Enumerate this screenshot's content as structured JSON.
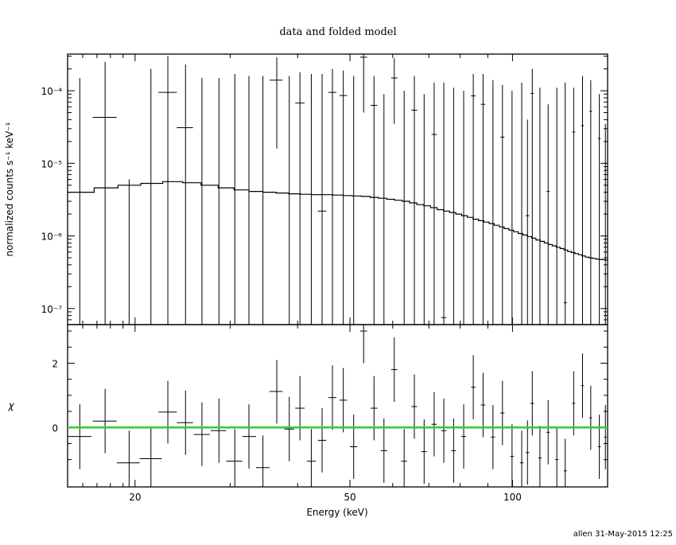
{
  "chart_data": {
    "type": "scatter",
    "title": "data and folded model",
    "xlabel": "Energy (keV)",
    "x_scale": "log",
    "xlim": [
      15,
      150
    ],
    "x_ticks": [
      20,
      50,
      100
    ],
    "footer": "allen 31-May-2015 12:25",
    "top_panel": {
      "ylabel": "normalized counts s⁻¹ keV⁻¹",
      "y_scale": "log",
      "ylim": [
        6e-08,
        0.00032
      ],
      "y_ticks": [
        {
          "value": 1e-07,
          "label": "10⁻⁷"
        },
        {
          "value": 1e-06,
          "label": "10⁻⁶"
        },
        {
          "value": 1e-05,
          "label": "10⁻⁵"
        },
        {
          "value": 0.0001,
          "label": "10⁻⁴"
        }
      ],
      "data": [
        {
          "x": 15.8,
          "xlo": 15.0,
          "xhi": 16.6,
          "y": 6e-08,
          "ylo": 6e-08,
          "yhi": 0.00015
        },
        {
          "x": 17.6,
          "xlo": 16.7,
          "xhi": 18.5,
          "y": 4.3e-05,
          "ylo": 6e-08,
          "yhi": 0.00025
        },
        {
          "x": 19.5,
          "xlo": 18.5,
          "xhi": 20.4,
          "y": 6e-08,
          "ylo": 6e-08,
          "yhi": 6e-06
        },
        {
          "x": 21.4,
          "xlo": 20.4,
          "xhi": 22.4,
          "y": 6e-08,
          "ylo": 6e-08,
          "yhi": 0.0002
        },
        {
          "x": 23.0,
          "xlo": 22.1,
          "xhi": 23.9,
          "y": 9.5e-05,
          "ylo": 6e-08,
          "yhi": 0.0003
        },
        {
          "x": 24.8,
          "xlo": 23.9,
          "xhi": 25.6,
          "y": 3.1e-05,
          "ylo": 6e-08,
          "yhi": 0.00023
        },
        {
          "x": 26.6,
          "xlo": 25.7,
          "xhi": 27.5,
          "y": 6e-08,
          "ylo": 6e-08,
          "yhi": 0.00015
        },
        {
          "x": 28.6,
          "xlo": 27.6,
          "xhi": 29.5,
          "y": 6e-08,
          "ylo": 6e-08,
          "yhi": 0.00015
        },
        {
          "x": 30.6,
          "xlo": 29.5,
          "xhi": 31.6,
          "y": 6e-08,
          "ylo": 6e-08,
          "yhi": 0.00017
        },
        {
          "x": 32.5,
          "xlo": 31.6,
          "xhi": 33.5,
          "y": 6e-08,
          "ylo": 6e-08,
          "yhi": 0.00016
        },
        {
          "x": 34.5,
          "xlo": 33.5,
          "xhi": 35.5,
          "y": 6e-08,
          "ylo": 6e-08,
          "yhi": 0.00016
        },
        {
          "x": 36.6,
          "xlo": 35.5,
          "xhi": 37.5,
          "y": 0.00014,
          "ylo": 1.6e-05,
          "yhi": 0.00029
        },
        {
          "x": 38.6,
          "xlo": 37.8,
          "xhi": 39.4,
          "y": 6e-08,
          "ylo": 6e-08,
          "yhi": 0.00016
        },
        {
          "x": 40.4,
          "xlo": 39.6,
          "xhi": 41.2,
          "y": 6.8e-05,
          "ylo": 6e-08,
          "yhi": 0.00018
        },
        {
          "x": 42.4,
          "xlo": 41.6,
          "xhi": 43.2,
          "y": 6e-08,
          "ylo": 6e-08,
          "yhi": 0.00017
        },
        {
          "x": 44.4,
          "xlo": 43.6,
          "xhi": 45.2,
          "y": 2.2e-06,
          "ylo": 6e-08,
          "yhi": 0.00017
        },
        {
          "x": 46.4,
          "xlo": 45.6,
          "xhi": 47.2,
          "y": 9.5e-05,
          "ylo": 6e-08,
          "yhi": 0.0002
        },
        {
          "x": 48.6,
          "xlo": 47.8,
          "xhi": 49.4,
          "y": 8.6e-05,
          "ylo": 6e-08,
          "yhi": 0.00019
        },
        {
          "x": 50.8,
          "xlo": 50.0,
          "xhi": 51.6,
          "y": 6e-08,
          "ylo": 6e-08,
          "yhi": 0.00016
        },
        {
          "x": 53.0,
          "xlo": 52.2,
          "xhi": 53.8,
          "y": 0.00029,
          "ylo": 5e-05,
          "yhi": 0.00032
        },
        {
          "x": 55.4,
          "xlo": 54.6,
          "xhi": 56.2,
          "y": 6.3e-05,
          "ylo": 6e-08,
          "yhi": 0.00016
        },
        {
          "x": 57.8,
          "xlo": 57.0,
          "xhi": 58.6,
          "y": 6e-08,
          "ylo": 6e-08,
          "yhi": 9e-05
        },
        {
          "x": 60.4,
          "xlo": 59.6,
          "xhi": 61.2,
          "y": 0.00015,
          "ylo": 3.5e-05,
          "yhi": 0.00028
        },
        {
          "x": 63.0,
          "xlo": 62.2,
          "xhi": 63.8,
          "y": 6e-08,
          "ylo": 6e-08,
          "yhi": 0.0001
        },
        {
          "x": 65.8,
          "xlo": 65.0,
          "xhi": 66.6,
          "y": 5.4e-05,
          "ylo": 6e-08,
          "yhi": 0.00016
        },
        {
          "x": 68.6,
          "xlo": 67.8,
          "xhi": 69.4,
          "y": 6e-08,
          "ylo": 6e-08,
          "yhi": 9e-05
        },
        {
          "x": 71.6,
          "xlo": 70.8,
          "xhi": 72.4,
          "y": 2.5e-05,
          "ylo": 6e-08,
          "yhi": 0.00013
        },
        {
          "x": 74.6,
          "xlo": 73.8,
          "xhi": 75.4,
          "y": 7.5e-08,
          "ylo": 6e-08,
          "yhi": 0.00013
        },
        {
          "x": 77.8,
          "xlo": 77.0,
          "xhi": 78.6,
          "y": 6e-08,
          "ylo": 6e-08,
          "yhi": 0.00011
        },
        {
          "x": 81.2,
          "xlo": 80.4,
          "xhi": 82.0,
          "y": 6e-08,
          "ylo": 6e-08,
          "yhi": 0.0001
        },
        {
          "x": 84.6,
          "xlo": 83.8,
          "xhi": 85.4,
          "y": 8.5e-05,
          "ylo": 6e-08,
          "yhi": 0.00017
        },
        {
          "x": 88.2,
          "xlo": 87.4,
          "xhi": 89.0,
          "y": 6.5e-05,
          "ylo": 6e-08,
          "yhi": 0.00017
        },
        {
          "x": 92.0,
          "xlo": 91.2,
          "xhi": 92.8,
          "y": 6e-08,
          "ylo": 6e-08,
          "yhi": 0.00014
        },
        {
          "x": 95.8,
          "xlo": 95.0,
          "xhi": 96.6,
          "y": 2.3e-05,
          "ylo": 6e-08,
          "yhi": 0.00012
        },
        {
          "x": 99.8,
          "xlo": 99.0,
          "xhi": 100.6,
          "y": 6e-08,
          "ylo": 6e-08,
          "yhi": 0.0001
        },
        {
          "x": 104.0,
          "xlo": 103.2,
          "xhi": 104.8,
          "y": 6e-08,
          "ylo": 6e-08,
          "yhi": 0.00013
        },
        {
          "x": 106.6,
          "xlo": 105.8,
          "xhi": 107.4,
          "y": 1.9e-06,
          "ylo": 6e-08,
          "yhi": 4e-05
        },
        {
          "x": 108.8,
          "xlo": 108.0,
          "xhi": 109.6,
          "y": 9.2e-05,
          "ylo": 6e-08,
          "yhi": 0.0002
        },
        {
          "x": 112.4,
          "xlo": 111.6,
          "xhi": 113.2,
          "y": 6e-08,
          "ylo": 6e-08,
          "yhi": 0.00011
        },
        {
          "x": 116.4,
          "xlo": 115.6,
          "xhi": 117.2,
          "y": 4.1e-06,
          "ylo": 6e-08,
          "yhi": 6.5e-05
        },
        {
          "x": 120.8,
          "xlo": 120.0,
          "xhi": 121.6,
          "y": 6e-08,
          "ylo": 6e-08,
          "yhi": 0.00011
        },
        {
          "x": 125.2,
          "xlo": 124.4,
          "xhi": 126.0,
          "y": 1.2e-07,
          "ylo": 6e-08,
          "yhi": 0.00013
        },
        {
          "x": 129.8,
          "xlo": 129.0,
          "xhi": 130.6,
          "y": 2.7e-05,
          "ylo": 6e-08,
          "yhi": 0.00011
        },
        {
          "x": 134.8,
          "xlo": 134.0,
          "xhi": 135.6,
          "y": 3.3e-05,
          "ylo": 6e-08,
          "yhi": 0.00016
        },
        {
          "x": 139.6,
          "xlo": 138.8,
          "xhi": 140.4,
          "y": 5.2e-05,
          "ylo": 6e-08,
          "yhi": 0.00014
        },
        {
          "x": 144.8,
          "xlo": 144.0,
          "xhi": 145.6,
          "y": 2.2e-05,
          "ylo": 6e-08,
          "yhi": 9e-05
        },
        {
          "x": 148.6,
          "xlo": 147.8,
          "xhi": 149.4,
          "y": 1e-05,
          "ylo": 6e-08,
          "yhi": 3.5e-05
        }
      ],
      "model": {
        "edges": [
          15,
          16.8,
          18.6,
          20.5,
          22.5,
          24.5,
          26.5,
          28.5,
          30.5,
          32.5,
          34.5,
          36.5,
          38.5,
          40.5,
          42.5,
          44.5,
          46.5,
          48.5,
          50.5,
          52.5,
          54.5,
          56.5,
          58.5,
          60.5,
          62.5,
          64.5,
          66.5,
          68.5,
          70.5,
          72.5,
          74.5,
          76.5,
          78.5,
          80.5,
          82.5,
          84.5,
          86.5,
          88.5,
          90.5,
          92.5,
          94.5,
          96.5,
          98.5,
          100.5,
          102.5,
          104.5,
          106.5,
          108.5,
          110.5,
          112.5,
          114.5,
          116.5,
          118.5,
          120.5,
          122.5,
          124.5,
          126.5,
          128.5,
          130.5,
          132.5,
          134.5,
          136.5,
          138.5,
          140.5,
          142.5,
          144.5,
          146.5,
          148.5,
          150
        ],
        "values": [
          4e-06,
          4.6e-06,
          5e-06,
          5.3e-06,
          5.6e-06,
          5.4e-06,
          5e-06,
          4.6e-06,
          4.3e-06,
          4.1e-06,
          4e-06,
          3.9e-06,
          3.8e-06,
          3.75e-06,
          3.7e-06,
          3.7e-06,
          3.65e-06,
          3.6e-06,
          3.55e-06,
          3.5e-06,
          3.4e-06,
          3.3e-06,
          3.2e-06,
          3.1e-06,
          3e-06,
          2.85e-06,
          2.7e-06,
          2.6e-06,
          2.45e-06,
          2.3e-06,
          2.2e-06,
          2.1e-06,
          2e-06,
          1.9e-06,
          1.8e-06,
          1.7e-06,
          1.62e-06,
          1.55e-06,
          1.48e-06,
          1.4e-06,
          1.33e-06,
          1.26e-06,
          1.2e-06,
          1.14e-06,
          1.08e-06,
          1.03e-06,
          9.8e-07,
          9.3e-07,
          8.8e-07,
          8.4e-07,
          8e-07,
          7.6e-07,
          7.3e-07,
          7e-07,
          6.7e-07,
          6.4e-07,
          6.1e-07,
          5.9e-07,
          5.7e-07,
          5.5e-07,
          5.3e-07,
          5.1e-07,
          5e-07,
          4.9e-07,
          4.8e-07,
          4.75e-07,
          4.7e-07,
          4.65e-07
        ]
      }
    },
    "bottom_panel": {
      "ylabel": "χ",
      "y_scale": "linear",
      "ylim": [
        -1.85,
        3.2
      ],
      "y_ticks": [
        {
          "value": 0,
          "label": "0"
        },
        {
          "value": 2,
          "label": "2"
        }
      ],
      "reference_line": {
        "y": 0,
        "color": "#33cc33"
      },
      "data": [
        {
          "x": 15.8,
          "xlo": 15.0,
          "xhi": 16.6,
          "y": -0.28,
          "ylo": -1.3,
          "yhi": 0.72
        },
        {
          "x": 17.6,
          "xlo": 16.7,
          "xhi": 18.5,
          "y": 0.2,
          "ylo": -0.8,
          "yhi": 1.2
        },
        {
          "x": 19.5,
          "xlo": 18.5,
          "xhi": 20.4,
          "y": -1.1,
          "ylo": -1.85,
          "yhi": -0.1
        },
        {
          "x": 21.4,
          "xlo": 20.4,
          "xhi": 22.4,
          "y": -0.97,
          "ylo": -1.85,
          "yhi": 0.0
        },
        {
          "x": 23.0,
          "xlo": 22.1,
          "xhi": 23.9,
          "y": 0.48,
          "ylo": -0.5,
          "yhi": 1.45
        },
        {
          "x": 24.8,
          "xlo": 23.9,
          "xhi": 25.6,
          "y": 0.15,
          "ylo": -0.85,
          "yhi": 1.15
        },
        {
          "x": 26.6,
          "xlo": 25.7,
          "xhi": 27.5,
          "y": -0.22,
          "ylo": -1.2,
          "yhi": 0.78
        },
        {
          "x": 28.6,
          "xlo": 27.6,
          "xhi": 29.5,
          "y": -0.1,
          "ylo": -1.1,
          "yhi": 0.9
        },
        {
          "x": 30.6,
          "xlo": 29.5,
          "xhi": 31.6,
          "y": -1.05,
          "ylo": -1.85,
          "yhi": -0.05
        },
        {
          "x": 32.5,
          "xlo": 31.6,
          "xhi": 33.5,
          "y": -0.28,
          "ylo": -1.28,
          "yhi": 0.72
        },
        {
          "x": 34.5,
          "xlo": 33.5,
          "xhi": 35.5,
          "y": -1.25,
          "ylo": -1.85,
          "yhi": -0.25
        },
        {
          "x": 36.6,
          "xlo": 35.5,
          "xhi": 37.5,
          "y": 1.12,
          "ylo": 0.12,
          "yhi": 2.1
        },
        {
          "x": 38.6,
          "xlo": 37.8,
          "xhi": 39.4,
          "y": -0.05,
          "ylo": -1.05,
          "yhi": 0.95
        },
        {
          "x": 40.4,
          "xlo": 39.6,
          "xhi": 41.2,
          "y": 0.6,
          "ylo": -0.4,
          "yhi": 1.6
        },
        {
          "x": 42.4,
          "xlo": 41.6,
          "xhi": 43.2,
          "y": -1.05,
          "ylo": -1.85,
          "yhi": -0.05
        },
        {
          "x": 44.4,
          "xlo": 43.6,
          "xhi": 45.2,
          "y": -0.4,
          "ylo": -1.4,
          "yhi": 0.6
        },
        {
          "x": 46.4,
          "xlo": 45.6,
          "xhi": 47.2,
          "y": 0.93,
          "ylo": -0.07,
          "yhi": 1.93
        },
        {
          "x": 48.6,
          "xlo": 47.8,
          "xhi": 49.4,
          "y": 0.85,
          "ylo": -0.15,
          "yhi": 1.85
        },
        {
          "x": 50.8,
          "xlo": 50.0,
          "xhi": 51.6,
          "y": -0.6,
          "ylo": -1.6,
          "yhi": 0.4
        },
        {
          "x": 53.0,
          "xlo": 52.2,
          "xhi": 53.8,
          "y": 3.0,
          "ylo": 2.0,
          "yhi": 3.2
        },
        {
          "x": 55.4,
          "xlo": 54.6,
          "xhi": 56.2,
          "y": 0.6,
          "ylo": -0.4,
          "yhi": 1.6
        },
        {
          "x": 57.8,
          "xlo": 57.0,
          "xhi": 58.6,
          "y": -0.72,
          "ylo": -1.72,
          "yhi": 0.28
        },
        {
          "x": 60.4,
          "xlo": 59.6,
          "xhi": 61.2,
          "y": 1.8,
          "ylo": 0.8,
          "yhi": 2.8
        },
        {
          "x": 63.0,
          "xlo": 62.2,
          "xhi": 63.8,
          "y": -1.05,
          "ylo": -1.85,
          "yhi": -0.05
        },
        {
          "x": 65.8,
          "xlo": 65.0,
          "xhi": 66.6,
          "y": 0.65,
          "ylo": -0.35,
          "yhi": 1.65
        },
        {
          "x": 68.6,
          "xlo": 67.8,
          "xhi": 69.4,
          "y": -0.75,
          "ylo": -1.75,
          "yhi": 0.25
        },
        {
          "x": 71.6,
          "xlo": 70.8,
          "xhi": 72.4,
          "y": 0.1,
          "ylo": -0.9,
          "yhi": 1.1
        },
        {
          "x": 74.6,
          "xlo": 73.8,
          "xhi": 75.4,
          "y": -0.1,
          "ylo": -1.1,
          "yhi": 0.9
        },
        {
          "x": 77.8,
          "xlo": 77.0,
          "xhi": 78.6,
          "y": -0.72,
          "ylo": -1.72,
          "yhi": 0.28
        },
        {
          "x": 81.2,
          "xlo": 80.4,
          "xhi": 82.0,
          "y": -0.28,
          "ylo": -1.28,
          "yhi": 0.72
        },
        {
          "x": 84.6,
          "xlo": 83.8,
          "xhi": 85.4,
          "y": 1.25,
          "ylo": 0.25,
          "yhi": 2.25
        },
        {
          "x": 88.2,
          "xlo": 87.4,
          "xhi": 89.0,
          "y": 0.7,
          "ylo": -0.3,
          "yhi": 1.7
        },
        {
          "x": 92.0,
          "xlo": 91.2,
          "xhi": 92.8,
          "y": -0.3,
          "ylo": -1.3,
          "yhi": 0.7
        },
        {
          "x": 95.8,
          "xlo": 95.0,
          "xhi": 96.6,
          "y": 0.45,
          "ylo": -0.55,
          "yhi": 1.45
        },
        {
          "x": 99.8,
          "xlo": 99.0,
          "xhi": 100.6,
          "y": -0.9,
          "ylo": -1.85,
          "yhi": 0.1
        },
        {
          "x": 104.0,
          "xlo": 103.2,
          "xhi": 104.8,
          "y": -1.1,
          "ylo": -1.85,
          "yhi": -0.1
        },
        {
          "x": 106.6,
          "xlo": 105.8,
          "xhi": 107.4,
          "y": -0.78,
          "ylo": -1.78,
          "yhi": 0.22
        },
        {
          "x": 108.8,
          "xlo": 108.0,
          "xhi": 109.6,
          "y": 0.75,
          "ylo": -0.25,
          "yhi": 1.75
        },
        {
          "x": 112.4,
          "xlo": 111.6,
          "xhi": 113.2,
          "y": -0.95,
          "ylo": -1.85,
          "yhi": 0.05
        },
        {
          "x": 116.4,
          "xlo": 115.6,
          "xhi": 117.2,
          "y": -0.15,
          "ylo": -1.15,
          "yhi": 0.85
        },
        {
          "x": 120.8,
          "xlo": 120.0,
          "xhi": 121.6,
          "y": -1.0,
          "ylo": -1.85,
          "yhi": 0.0
        },
        {
          "x": 125.2,
          "xlo": 124.4,
          "xhi": 126.0,
          "y": -1.35,
          "ylo": -1.85,
          "yhi": -0.35
        },
        {
          "x": 129.8,
          "xlo": 129.0,
          "xhi": 130.6,
          "y": 0.75,
          "ylo": -0.25,
          "yhi": 1.75
        },
        {
          "x": 134.8,
          "xlo": 134.0,
          "xhi": 135.6,
          "y": 1.3,
          "ylo": 0.3,
          "yhi": 2.3
        },
        {
          "x": 139.6,
          "xlo": 138.8,
          "xhi": 140.4,
          "y": 0.3,
          "ylo": -0.7,
          "yhi": 1.3
        },
        {
          "x": 144.8,
          "xlo": 144.0,
          "xhi": 145.6,
          "y": -0.6,
          "ylo": -1.6,
          "yhi": 0.4
        },
        {
          "x": 148.6,
          "xlo": 147.8,
          "xhi": 149.4,
          "y": -0.3,
          "ylo": -1.3,
          "yhi": 0.7
        }
      ]
    }
  }
}
